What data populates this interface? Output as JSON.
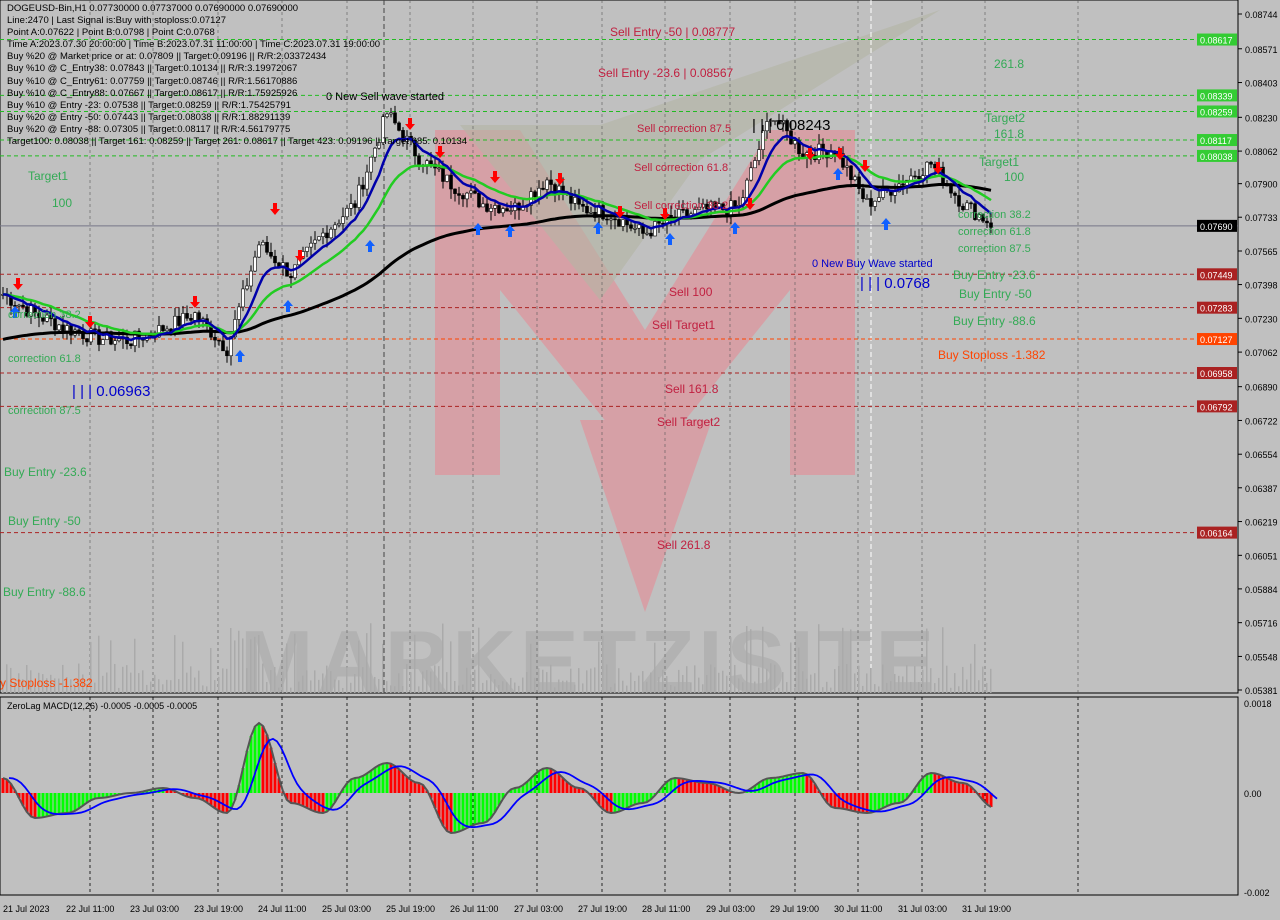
{
  "header": {
    "lines": [
      "DOGEUSD-Bin,H1  0.07730000 0.07737000 0.07690000 0.07690000",
      "Line:2470 | Last Signal is:Buy with stoploss:0.07127",
      "Point A:0.07622 | Point B:0.0798 | Point C:0.0768",
      "Time A:2023.07.30 20:00:00 | Time B:2023.07.31 11:00:00 | Time C:2023.07.31 19:00:00",
      "Buy %20 @ Market price or at: 0.07809 || Target:0.09196 || R/R:2.03372434",
      "Buy %10 @ C_Entry38: 0.07843 || Target:0.10134 || R/R:3.19972067",
      "Buy %10 @ C_Entry61: 0.07759 || Target:0.08746 || R/R:1.56170886",
      "Buy %10 @ C_Entry88: 0.07667 || Target:0.08617 || R/R:1.75925926",
      "Buy %10 @ Entry -23: 0.07538 || Target:0.08259 || R/R:1.75425791",
      "Buy %20 @ Entry -50: 0.07443 || Target:0.08038 || R/R:1.88291139",
      "Buy %20 @ Entry -88: 0.07305 || Target:0.08117 || R/R:4.56179775",
      "Target100: 0.08038 || Target 161: 0.08259 || Target 261: 0.08617 || Target 423: 0.09196 || Target 685: 0.10134"
    ]
  },
  "chart_labels": [
    "Sell Entry -50 | 0.08777",
    "Sell Entry -23.6 | 0.08567",
    "Sell correction 87.5",
    "| | | 0.08243",
    "Sell correction 61.8",
    "Sell correction 38.2",
    "Sell 100",
    "Sell Target1",
    "Sell 161.8",
    "Sell Target2",
    "Sell  261.8",
    "0 New Sell wave started",
    "0 New Buy Wave started",
    "| | | 0.0768",
    "| | | 0.06963",
    "261.8",
    "Target2",
    "161.8",
    "Target1",
    "100",
    "Target1",
    "100",
    "correction 38.2",
    "correction 61.8",
    "correction 87.5",
    "Buy Entry -23.6",
    "Buy Entry -50",
    "Buy Entry -88.6",
    "Buy Stoploss -1.382",
    "correction 38.2",
    "correction 61.8",
    "correction 87.5",
    "Buy Entry -23.6",
    "Buy Entry -50",
    "Buy Entry -88.6",
    "y Stoploss -1.382"
  ],
  "watermark": "MARKETZISITE",
  "macd_title": "ZeroLag MACD(12,26) -0.0005 -0.0005 -0.0005",
  "colors": {
    "bg": "#c0c0c0",
    "bull_ma": "#22cc22",
    "fast_ma": "#0000aa",
    "slow_ma": "#000000",
    "hist_up": "#00ff00",
    "hist_down": "#ff0000",
    "signal": "#0000ff",
    "sell_text": "#cc1122",
    "buy_text": "#33aa55",
    "stop": "#ff4400"
  },
  "chart_data": [
    {
      "type": "candlestick",
      "symbol": "DOGEUSD-Bin",
      "timeframe": "H1",
      "x": [
        "21 Jul 13:00",
        "21 Jul 21:00",
        "22 Jul 05:00",
        "22 Jul 13:00",
        "22 Jul 21:00",
        "23 Jul 05:00",
        "23 Jul 13:00",
        "23 Jul 21:00",
        "24 Jul 05:00",
        "24 Jul 13:00",
        "24 Jul 21:00",
        "25 Jul 05:00",
        "25 Jul 13:00",
        "25 Jul 21:00",
        "26 Jul 05:00",
        "26 Jul 13:00",
        "26 Jul 21:00",
        "27 Jul 05:00",
        "27 Jul 13:00",
        "27 Jul 21:00",
        "28 Jul 05:00",
        "28 Jul 13:00",
        "28 Jul 21:00",
        "29 Jul 05:00",
        "29 Jul 13:00",
        "29 Jul 21:00",
        "30 Jul 05:00",
        "30 Jul 13:00",
        "30 Jul 21:00",
        "31 Jul 05:00",
        "31 Jul 13:00",
        "31 Jul 21:00"
      ],
      "close": [
        0.0735,
        0.0725,
        0.0718,
        0.0713,
        0.0712,
        0.0718,
        0.0725,
        0.0708,
        0.076,
        0.0745,
        0.0765,
        0.078,
        0.0825,
        0.0803,
        0.079,
        0.078,
        0.0778,
        0.0792,
        0.0778,
        0.0775,
        0.0765,
        0.0773,
        0.0777,
        0.0778,
        0.0825,
        0.0805,
        0.0807,
        0.078,
        0.079,
        0.08,
        0.078,
        0.0769
      ],
      "current_price": "0.07690",
      "ylim": [
        0.05381,
        0.08744
      ],
      "y_ticks": [
        "0.08744",
        "0.08571",
        "0.08403",
        "0.08230",
        "0.08062",
        "0.07900",
        "0.07733",
        "0.07565",
        "0.07398",
        "0.07230",
        "0.07062",
        "0.06890",
        "0.06722",
        "0.06554",
        "0.06387",
        "0.06219",
        "0.06051",
        "0.05884",
        "0.05716",
        "0.05548",
        "0.05381"
      ],
      "x_ticks": [
        "21 Jul 2023",
        "22 Jul 11:00",
        "23 Jul 03:00",
        "23 Jul 19:00",
        "24 Jul 11:00",
        "25 Jul 03:00",
        "25 Jul 19:00",
        "26 Jul 11:00",
        "27 Jul 03:00",
        "27 Jul 19:00",
        "28 Jul 11:00",
        "29 Jul 03:00",
        "29 Jul 19:00",
        "30 Jul 11:00",
        "31 Jul 03:00",
        "31 Jul 19:00"
      ],
      "levels": [
        {
          "value": 0.08617,
          "label": "0.08617",
          "color": "#22bb22"
        },
        {
          "value": 0.08339,
          "label": "0.08339",
          "color": "#22bb22"
        },
        {
          "value": 0.08259,
          "label": "0.08259",
          "color": "#22bb22"
        },
        {
          "value": 0.08117,
          "label": "0.08117",
          "color": "#22bb22"
        },
        {
          "value": 0.08038,
          "label": "0.08038",
          "color": "#22bb22"
        },
        {
          "value": 0.07449,
          "label": "0.07449",
          "color": "#aa2222"
        },
        {
          "value": 0.07283,
          "label": "0.07283",
          "color": "#aa2222"
        },
        {
          "value": 0.07127,
          "label": "0.07127",
          "color": "#ff4400"
        },
        {
          "value": 0.06958,
          "label": "0.06958",
          "color": "#aa2222"
        },
        {
          "value": 0.06792,
          "label": "0.06792",
          "color": "#aa2222"
        },
        {
          "value": 0.06164,
          "label": "0.06164",
          "color": "#aa2222"
        }
      ]
    },
    {
      "type": "bar",
      "name": "ZeroLag MACD(12,26)",
      "values": [
        0.0003,
        -0.0005,
        -0.0004,
        -0.0001,
        0,
        0.0001,
        -0.0001,
        -0.0004,
        0.0014,
        -0.0002,
        -0.0004,
        0.0003,
        0.0006,
        0.0002,
        -0.0008,
        -0.0006,
        0.0001,
        0.0005,
        0.0001,
        -0.0004,
        -0.0002,
        0.0003,
        0.0002,
        0,
        0.0003,
        0.0004,
        -0.0003,
        -0.0004,
        -0.0002,
        0.0004,
        0.0002,
        -0.0003
      ],
      "ylim": [
        -0.002,
        0.0018
      ],
      "y_ticks": [
        "0.0018",
        "0.00",
        "-0.002"
      ]
    }
  ]
}
